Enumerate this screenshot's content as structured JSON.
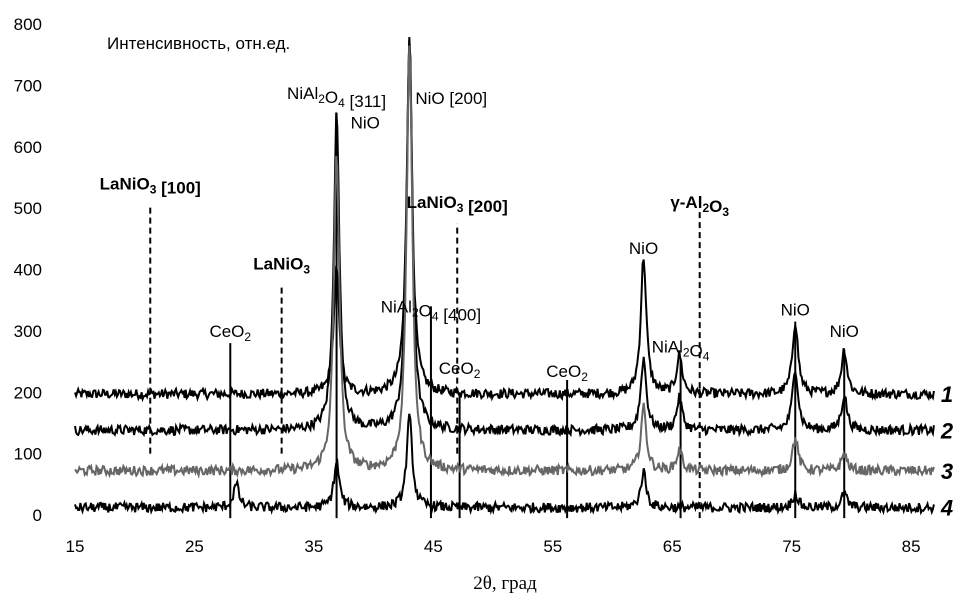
{
  "chart_data": {
    "type": "line",
    "title": "",
    "ylabel": "Интенсивность, отн.ед.",
    "xlabel": "2θ, град",
    "xlim": [
      15,
      87
    ],
    "ylim": [
      0,
      800
    ],
    "xticks": [
      "15",
      "25",
      "35",
      "45",
      "55",
      "65",
      "75",
      "85"
    ],
    "yticks": [
      "0",
      "100",
      "200",
      "300",
      "400",
      "500",
      "600",
      "700",
      "800"
    ],
    "grid": false,
    "series": [
      {
        "name": "1",
        "color": "#000000",
        "baseline": 197,
        "peaks": [
          [
            36.9,
            400
          ],
          [
            43.0,
            780
          ],
          [
            62.6,
            420
          ],
          [
            65.6,
            260
          ],
          [
            75.3,
            315
          ],
          [
            79.4,
            270
          ]
        ]
      },
      {
        "name": "2",
        "color": "#000000",
        "baseline": 138,
        "peaks": [
          [
            36.9,
            655
          ],
          [
            43.0,
            780
          ],
          [
            62.6,
            255
          ],
          [
            65.6,
            190
          ],
          [
            75.3,
            240
          ],
          [
            79.4,
            195
          ]
        ]
      },
      {
        "name": "3",
        "color": "#666666",
        "baseline": 72,
        "peaks": [
          [
            36.9,
            590
          ],
          [
            43.0,
            770
          ],
          [
            62.6,
            175
          ],
          [
            65.6,
            105
          ],
          [
            75.3,
            125
          ],
          [
            79.4,
            100
          ]
        ]
      },
      {
        "name": "4",
        "color": "#000000",
        "baseline": 12,
        "peaks": [
          [
            28.5,
            50
          ],
          [
            36.9,
            85
          ],
          [
            43.0,
            160
          ],
          [
            62.6,
            70
          ],
          [
            75.3,
            35
          ],
          [
            79.4,
            35
          ]
        ]
      }
    ],
    "markers": [
      {
        "label_parts": [
          [
            "LaNiO",
            ""
          ],
          [
            "3",
            "sub"
          ],
          [
            " [100]",
            ""
          ]
        ],
        "bold": true,
        "x": 21.3,
        "y_bottom": 100,
        "y_top": 505,
        "style": "dashed",
        "label_y": 530
      },
      {
        "label_parts": [
          [
            "LaNiO",
            ""
          ],
          [
            "3",
            "sub"
          ]
        ],
        "bold": true,
        "x": 32.3,
        "y_bottom": 100,
        "y_top": 375,
        "style": "dashed",
        "label_y": 400
      },
      {
        "label_parts": [
          [
            "CeO",
            ""
          ],
          [
            "2",
            "sub"
          ]
        ],
        "bold": false,
        "x": 28.0,
        "y_bottom": -5,
        "y_top": 280,
        "style": "solid",
        "label_y": 290
      },
      {
        "label_parts": [
          [
            "NiAl",
            ""
          ],
          [
            "2",
            "sub"
          ],
          [
            "O",
            ""
          ],
          [
            "4",
            "sub"
          ],
          [
            " [311]",
            ""
          ]
        ],
        "bold": false,
        "x": 36.9,
        "y_bottom": -5,
        "y_top": 655,
        "style": "solid",
        "label_y": 678
      },
      {
        "label_parts": [
          [
            "NiO",
            ""
          ]
        ],
        "bold": false,
        "x": 39.3,
        "y_bottom": 0,
        "y_top": 0,
        "style": "none",
        "label_y": 630
      },
      {
        "label_parts": [
          [
            "NiO [200]",
            ""
          ]
        ],
        "bold": false,
        "x": 46.5,
        "y_bottom": 0,
        "y_top": 0,
        "style": "none",
        "label_y": 670
      },
      {
        "label_parts": [
          [
            "LaNiO",
            ""
          ],
          [
            "3",
            "sub"
          ],
          [
            " [200]",
            ""
          ]
        ],
        "bold": true,
        "x": 47.0,
        "y_bottom": 100,
        "y_top": 475,
        "style": "dashed",
        "label_y": 500
      },
      {
        "label_parts": [
          [
            "NiAl",
            ""
          ],
          [
            "2",
            "sub"
          ],
          [
            "O",
            ""
          ],
          [
            "4",
            "sub"
          ],
          [
            " [400]",
            ""
          ]
        ],
        "bold": false,
        "x": 44.8,
        "y_bottom": -5,
        "y_top": 340,
        "style": "solid",
        "label_y": 330
      },
      {
        "label_parts": [
          [
            "CeO",
            ""
          ],
          [
            "2",
            "sub"
          ]
        ],
        "bold": false,
        "x": 47.2,
        "y_bottom": -5,
        "y_top": 200,
        "style": "solid",
        "label_y": 230
      },
      {
        "label_parts": [
          [
            "CeO",
            ""
          ],
          [
            "2",
            "sub"
          ]
        ],
        "bold": false,
        "x": 56.2,
        "y_bottom": -5,
        "y_top": 220,
        "style": "solid",
        "label_y": 225
      },
      {
        "label_parts": [
          [
            "NiO",
            ""
          ]
        ],
        "bold": false,
        "x": 62.6,
        "y_bottom": 0,
        "y_top": 0,
        "style": "none",
        "label_y": 425
      },
      {
        "label_parts": [
          [
            "NiAl",
            ""
          ],
          [
            "2",
            "sub"
          ],
          [
            "O",
            ""
          ],
          [
            "4",
            "sub"
          ]
        ],
        "bold": false,
        "x": 65.7,
        "y_bottom": -5,
        "y_top": 255,
        "style": "solid",
        "label_y": 265
      },
      {
        "label_parts": [
          [
            "γ-Al",
            ""
          ],
          [
            "2",
            "sub"
          ],
          [
            "O",
            ""
          ],
          [
            "3",
            "sub"
          ]
        ],
        "bold": true,
        "x": 67.3,
        "y_bottom": -5,
        "y_top": 495,
        "style": "dashed",
        "label_y": 500
      },
      {
        "label_parts": [
          [
            "NiO",
            ""
          ]
        ],
        "bold": false,
        "x": 75.3,
        "y_bottom": -5,
        "y_top": 315,
        "style": "solid",
        "label_y": 325
      },
      {
        "label_parts": [
          [
            "NiO",
            ""
          ]
        ],
        "bold": false,
        "x": 79.4,
        "y_bottom": -5,
        "y_top": 270,
        "style": "solid",
        "label_y": 290
      }
    ]
  }
}
